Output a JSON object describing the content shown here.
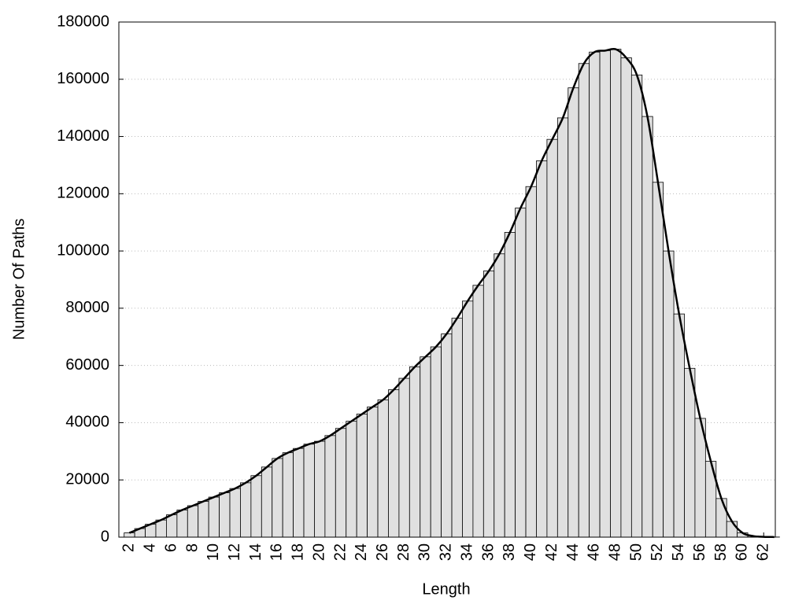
{
  "chart_data": {
    "type": "histogram-curve",
    "x_label": "Length",
    "y_label": "Number Of Paths",
    "x": [
      2,
      3,
      4,
      5,
      6,
      7,
      8,
      9,
      10,
      11,
      12,
      13,
      14,
      15,
      16,
      17,
      18,
      19,
      20,
      21,
      22,
      23,
      24,
      25,
      26,
      27,
      28,
      29,
      30,
      31,
      32,
      33,
      34,
      35,
      36,
      37,
      38,
      39,
      40,
      41,
      42,
      43,
      44,
      45,
      46,
      47,
      48,
      49,
      50,
      51,
      52,
      53,
      54,
      55,
      56,
      57,
      58,
      59,
      60,
      61,
      62,
      63
    ],
    "values": [
      1500,
      3000,
      4500,
      6000,
      7800,
      9500,
      11000,
      12500,
      14000,
      15500,
      17000,
      19000,
      21500,
      24500,
      27500,
      29500,
      31000,
      32500,
      33500,
      35500,
      38000,
      40500,
      43000,
      45500,
      48000,
      51500,
      55500,
      59500,
      63000,
      66500,
      71000,
      76500,
      82500,
      88000,
      93000,
      99000,
      106500,
      115000,
      122500,
      131500,
      139000,
      146500,
      157000,
      165500,
      169500,
      170000,
      170500,
      167500,
      161500,
      147000,
      124000,
      100000,
      78000,
      59000,
      41500,
      26500,
      13500,
      5500,
      1500,
      400,
      100,
      50
    ],
    "bar_color": "#e0e0e0",
    "line_color": "#000000",
    "smooth_line": true,
    "xlim": [
      1,
      63.1
    ],
    "xticks": [
      2,
      4,
      6,
      8,
      10,
      12,
      14,
      16,
      18,
      20,
      22,
      24,
      26,
      28,
      30,
      32,
      34,
      36,
      38,
      40,
      42,
      44,
      46,
      48,
      50,
      52,
      54,
      56,
      58,
      60,
      62
    ],
    "ylim": [
      0,
      180000
    ],
    "yticks": [
      0,
      20000,
      40000,
      60000,
      80000,
      100000,
      120000,
      140000,
      160000,
      180000
    ],
    "grid": true
  }
}
